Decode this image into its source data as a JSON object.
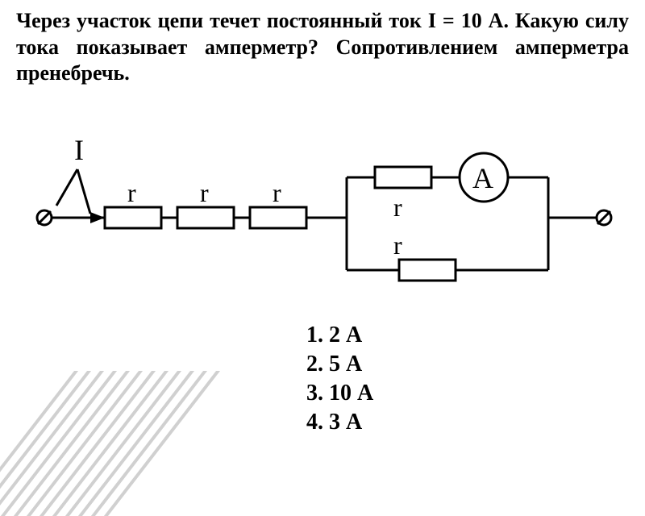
{
  "question": {
    "text": "Через участок цепи течет постоянный ток I = 10 А. Какую силу тока показывает амперметр? Сопротивлением амперметра пренебречь.",
    "fontsize": 26,
    "fontweight": "bold",
    "color": "#000000"
  },
  "circuit": {
    "label_I": "I",
    "label_r": "r",
    "label_A": "A",
    "stroke_color": "#000000",
    "stroke_width": 3,
    "font_family": "Times New Roman",
    "label_fontsize_big": 36,
    "label_fontsize_r": 32,
    "resistor_w": 70,
    "resistor_h": 26,
    "ammeter_radius": 30,
    "terminal_radius": 9
  },
  "answers": {
    "items": [
      "2 А",
      "5 А",
      "10 А",
      "3 А"
    ],
    "fontsize": 28,
    "fontweight": "bold",
    "color": "#000000"
  },
  "decor": {
    "line_color": "#d0d0d0",
    "line_width": 4,
    "line_count": 12
  }
}
